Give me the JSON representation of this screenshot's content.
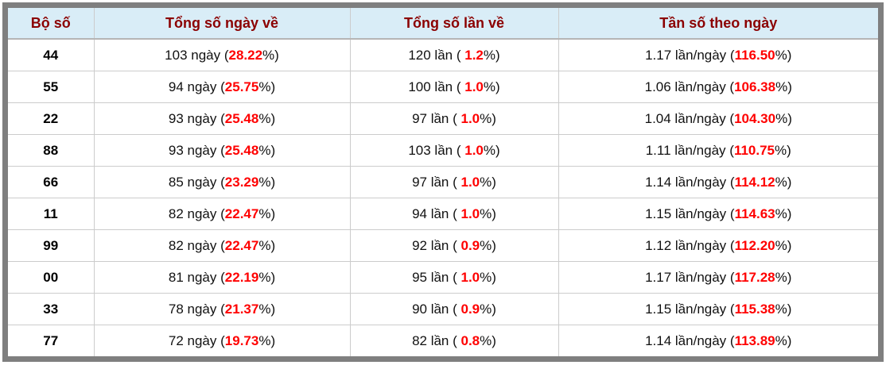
{
  "table": {
    "headers": [
      "Bộ số",
      "Tổng số ngày về",
      "Tổng số lần về",
      "Tần số theo ngày"
    ],
    "rows": [
      {
        "num": "44",
        "days_prefix": "103 ngày (",
        "days_value": "28.22",
        "days_suffix": "%)",
        "times_prefix": "120 lần ( ",
        "times_value": "1.2",
        "times_suffix": "%)",
        "freq_prefix": "1.17 lần/ngày (",
        "freq_value": "116.50",
        "freq_suffix": "%)"
      },
      {
        "num": "55",
        "days_prefix": "94 ngày (",
        "days_value": "25.75",
        "days_suffix": "%)",
        "times_prefix": "100 lần ( ",
        "times_value": "1.0",
        "times_suffix": "%)",
        "freq_prefix": "1.06 lần/ngày (",
        "freq_value": "106.38",
        "freq_suffix": "%)"
      },
      {
        "num": "22",
        "days_prefix": "93 ngày (",
        "days_value": "25.48",
        "days_suffix": "%)",
        "times_prefix": "97 lần ( ",
        "times_value": "1.0",
        "times_suffix": "%)",
        "freq_prefix": "1.04 lần/ngày (",
        "freq_value": "104.30",
        "freq_suffix": "%)"
      },
      {
        "num": "88",
        "days_prefix": "93 ngày (",
        "days_value": "25.48",
        "days_suffix": "%)",
        "times_prefix": "103 lần ( ",
        "times_value": "1.0",
        "times_suffix": "%)",
        "freq_prefix": "1.11 lần/ngày (",
        "freq_value": "110.75",
        "freq_suffix": "%)"
      },
      {
        "num": "66",
        "days_prefix": "85 ngày (",
        "days_value": "23.29",
        "days_suffix": "%)",
        "times_prefix": "97 lần ( ",
        "times_value": "1.0",
        "times_suffix": "%)",
        "freq_prefix": "1.14 lần/ngày (",
        "freq_value": "114.12",
        "freq_suffix": "%)"
      },
      {
        "num": "11",
        "days_prefix": "82 ngày (",
        "days_value": "22.47",
        "days_suffix": "%)",
        "times_prefix": "94 lần ( ",
        "times_value": "1.0",
        "times_suffix": "%)",
        "freq_prefix": "1.15 lần/ngày (",
        "freq_value": "114.63",
        "freq_suffix": "%)"
      },
      {
        "num": "99",
        "days_prefix": "82 ngày (",
        "days_value": "22.47",
        "days_suffix": "%)",
        "times_prefix": "92 lần ( ",
        "times_value": "0.9",
        "times_suffix": "%)",
        "freq_prefix": "1.12 lần/ngày (",
        "freq_value": "112.20",
        "freq_suffix": "%)"
      },
      {
        "num": "00",
        "days_prefix": "81 ngày (",
        "days_value": "22.19",
        "days_suffix": "%)",
        "times_prefix": "95 lần ( ",
        "times_value": "1.0",
        "times_suffix": "%)",
        "freq_prefix": "1.17 lần/ngày (",
        "freq_value": "117.28",
        "freq_suffix": "%)"
      },
      {
        "num": "33",
        "days_prefix": "78 ngày (",
        "days_value": "21.37",
        "days_suffix": "%)",
        "times_prefix": "90 lần ( ",
        "times_value": "0.9",
        "times_suffix": "%)",
        "freq_prefix": "1.15 lần/ngày (",
        "freq_value": "115.38",
        "freq_suffix": "%)"
      },
      {
        "num": "77",
        "days_prefix": "72 ngày (",
        "days_value": "19.73",
        "days_suffix": "%)",
        "times_prefix": "82 lần ( ",
        "times_value": "0.8",
        "times_suffix": "%)",
        "freq_prefix": "1.14 lần/ngày (",
        "freq_value": "113.89",
        "freq_suffix": "%)"
      }
    ]
  },
  "colors": {
    "header_background": "#d9edf7",
    "header_text": "#8b0000",
    "highlight_value": "#ff0000",
    "outer_frame": "#7f7f7f",
    "row_border": "#cccccc",
    "body_text": "#111111"
  }
}
